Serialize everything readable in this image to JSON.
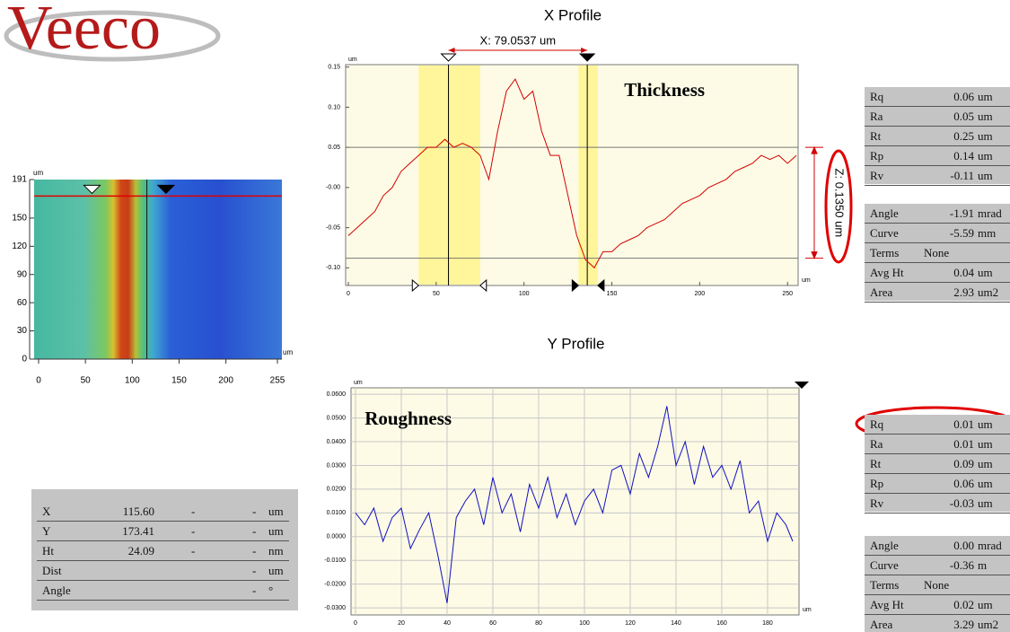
{
  "logo": "Veeco",
  "chart_data": [
    {
      "type": "line",
      "title": "X Profile",
      "annotation": "Thickness",
      "cursor_label": "X: 79.0537 um",
      "z_label": "Z: 0.1350 um",
      "x_unit": "um",
      "y_unit": "um",
      "grid": false,
      "xlim": [
        0,
        255
      ],
      "ylim": [
        -0.122,
        0.153
      ],
      "xticks": [
        0,
        50,
        100,
        150,
        200,
        250
      ],
      "yticks": [
        0.15,
        {
          "value": 0.1,
          "label": "0.10"
        },
        0.05,
        {
          "value": 0,
          "label": "-0.00"
        },
        -0.05,
        {
          "value": -0.1,
          "label": "-0.10"
        }
      ],
      "bands": [
        [
          40,
          75
        ],
        [
          131,
          142
        ]
      ],
      "cursors": [
        57,
        136
      ],
      "ref_lines": [
        0.05,
        -0.088
      ],
      "x": [
        0,
        5,
        10,
        15,
        20,
        25,
        30,
        35,
        40,
        45,
        50,
        55,
        60,
        65,
        70,
        75,
        80,
        85,
        90,
        95,
        100,
        105,
        110,
        115,
        120,
        125,
        130,
        135,
        140,
        145,
        150,
        155,
        160,
        165,
        170,
        175,
        180,
        185,
        190,
        195,
        200,
        205,
        210,
        215,
        220,
        225,
        230,
        235,
        240,
        245,
        250,
        255
      ],
      "series": [
        {
          "color": "#d40000",
          "values": [
            -0.06,
            -0.05,
            -0.04,
            -0.03,
            -0.01,
            0,
            0.02,
            0.03,
            0.04,
            0.05,
            0.05,
            0.06,
            0.05,
            0.055,
            0.05,
            0.04,
            0.01,
            0.07,
            0.12,
            0.135,
            0.11,
            0.12,
            0.07,
            0.04,
            0.04,
            -0.01,
            -0.06,
            -0.09,
            -0.1,
            -0.08,
            -0.08,
            -0.07,
            -0.065,
            -0.06,
            -0.05,
            -0.045,
            -0.04,
            -0.03,
            -0.02,
            -0.015,
            -0.01,
            0,
            0.005,
            0.01,
            0.02,
            0.025,
            0.03,
            0.04,
            0.035,
            0.04,
            0.03,
            0.04
          ]
        }
      ]
    },
    {
      "type": "line",
      "title": "Y Profile",
      "annotation": "Roughness",
      "x_unit": "um",
      "y_unit": "um",
      "grid": true,
      "xlim": [
        0,
        191
      ],
      "ylim": [
        -0.033,
        0.0627
      ],
      "xticks": [
        0,
        20,
        40,
        60,
        80,
        100,
        120,
        140,
        160,
        180
      ],
      "yticks": [
        {
          "value": 0.06,
          "label": "0.0600"
        },
        {
          "value": 0.05,
          "label": "0.0500"
        },
        {
          "value": 0.04,
          "label": "0.0400"
        },
        {
          "value": 0.03,
          "label": "0.0300"
        },
        {
          "value": 0.02,
          "label": "0.0200"
        },
        {
          "value": 0.01,
          "label": "0.0100"
        },
        {
          "value": 0,
          "label": "0.0000"
        },
        {
          "value": -0.01,
          "label": "-0.0100"
        },
        {
          "value": -0.02,
          "label": "-0.0200"
        },
        {
          "value": -0.03,
          "label": "-0.0300"
        }
      ],
      "x": [
        0,
        4,
        8,
        12,
        16,
        20,
        24,
        28,
        32,
        36,
        40,
        44,
        48,
        52,
        56,
        60,
        64,
        68,
        72,
        76,
        80,
        84,
        88,
        92,
        96,
        100,
        104,
        108,
        112,
        116,
        120,
        124,
        128,
        132,
        136,
        140,
        144,
        148,
        152,
        156,
        160,
        164,
        168,
        172,
        176,
        180,
        184,
        188,
        191
      ],
      "series": [
        {
          "color": "#1010c0",
          "values": [
            0.01,
            0.005,
            0.012,
            -0.002,
            0.008,
            0.012,
            -0.005,
            0.003,
            0.01,
            -0.008,
            -0.028,
            0.008,
            0.015,
            0.02,
            0.005,
            0.025,
            0.01,
            0.018,
            0.002,
            0.022,
            0.012,
            0.025,
            0.008,
            0.018,
            0.005,
            0.015,
            0.02,
            0.01,
            0.028,
            0.03,
            0.018,
            0.035,
            0.025,
            0.038,
            0.055,
            0.03,
            0.04,
            0.022,
            0.038,
            0.025,
            0.03,
            0.02,
            0.032,
            0.01,
            0.015,
            -0.002,
            0.01,
            0.005,
            -0.002
          ]
        }
      ]
    },
    {
      "type": "image",
      "x_unit": "um",
      "y_unit": "um",
      "xlim": [
        0,
        255
      ],
      "ylim": [
        0,
        191
      ],
      "xticks": [
        0,
        50,
        100,
        150,
        200,
        255
      ],
      "yticks": [
        0,
        30,
        60,
        90,
        120,
        150,
        191
      ],
      "cursor_x": 115.6,
      "cursor_y": 173.41
    }
  ],
  "stats_tables": [
    {
      "rows": [
        {
          "name": "Rq",
          "value": "0.06",
          "unit": "um"
        },
        {
          "name": "Ra",
          "value": "0.05",
          "unit": "um"
        },
        {
          "name": "Rt",
          "value": "0.25",
          "unit": "um"
        },
        {
          "name": "Rp",
          "value": "0.14",
          "unit": "um"
        },
        {
          "name": "Rv",
          "value": "-0.11",
          "unit": "um"
        }
      ]
    },
    {
      "rows": [
        {
          "name": "Angle",
          "value": "-1.91",
          "unit": "mrad"
        },
        {
          "name": "Curve",
          "value": "-5.59",
          "unit": "mm"
        },
        {
          "name": "Terms",
          "value": "None"
        },
        {
          "name": "Avg Ht",
          "value": "0.04",
          "unit": "um"
        },
        {
          "name": "Area",
          "value": "2.93",
          "unit": "um2"
        }
      ]
    },
    {
      "rows": [
        {
          "name": "Rq",
          "value": "0.01",
          "unit": "um"
        },
        {
          "name": "Ra",
          "value": "0.01",
          "unit": "um"
        },
        {
          "name": "Rt",
          "value": "0.09",
          "unit": "um"
        },
        {
          "name": "Rp",
          "value": "0.06",
          "unit": "um"
        },
        {
          "name": "Rv",
          "value": "-0.03",
          "unit": "um"
        }
      ]
    },
    {
      "rows": [
        {
          "name": "Angle",
          "value": "0.00",
          "unit": "mrad"
        },
        {
          "name": "Curve",
          "value": "-0.36",
          "unit": "m"
        },
        {
          "name": "Terms",
          "value": "None"
        },
        {
          "name": "Avg Ht",
          "value": "0.02",
          "unit": "um"
        },
        {
          "name": "Area",
          "value": "3.29",
          "unit": "um2"
        }
      ]
    }
  ],
  "cursor_table": {
    "rows": [
      {
        "name": "X",
        "value": "115.60",
        "dash1": "-",
        "dash2": "-",
        "unit": "um"
      },
      {
        "name": "Y",
        "value": "173.41",
        "dash1": "-",
        "dash2": "-",
        "unit": "um"
      },
      {
        "name": "Ht",
        "value": "24.09",
        "dash1": "-",
        "dash2": "-",
        "unit": "nm"
      },
      {
        "name": "Dist",
        "dash2": "-",
        "unit": "um"
      },
      {
        "name": "Angle",
        "dash2": "-",
        "unit": "°"
      }
    ]
  }
}
